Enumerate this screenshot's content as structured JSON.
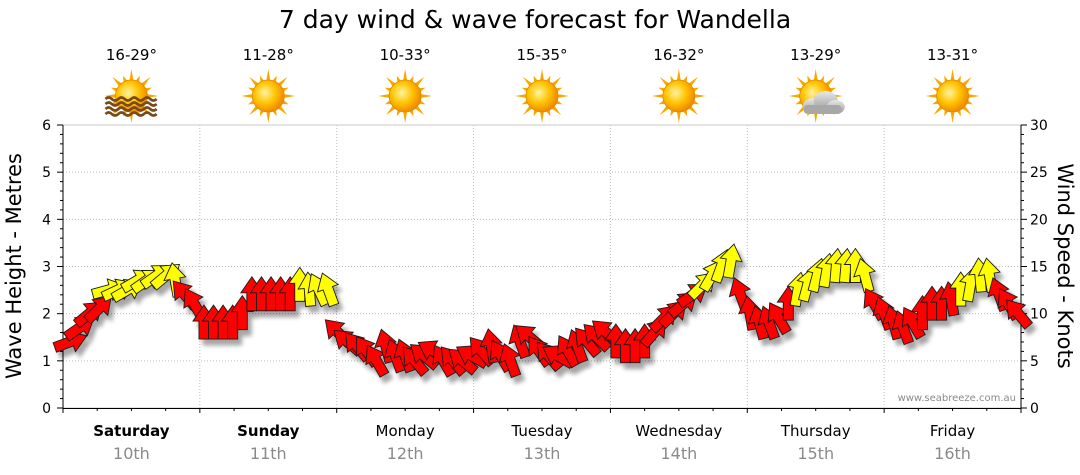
{
  "chart_data": {
    "type": "wind-wave",
    "title": "7 day wind & wave forecast for Wandella",
    "ylabel_left": "Wave Height - Metres",
    "ylabel_right": "Wind Speed - Knots",
    "ylim_left": [
      0,
      6
    ],
    "ylim_right": [
      0,
      30
    ],
    "yticks_left": [
      "0",
      "1",
      "2",
      "3",
      "4",
      "5",
      "6"
    ],
    "yticks_right": [
      "0",
      "5",
      "10",
      "15",
      "20",
      "25",
      "30"
    ],
    "watermark": "www.seabreeze.com.au",
    "days": [
      {
        "day": "Saturday",
        "date": "10th",
        "temp": "16-29°",
        "icon": "sun-haze-icon",
        "bold": true
      },
      {
        "day": "Sunday",
        "date": "11th",
        "temp": "11-28°",
        "icon": "sun-icon",
        "bold": true
      },
      {
        "day": "Monday",
        "date": "12th",
        "temp": "10-33°",
        "icon": "sun-icon",
        "bold": false
      },
      {
        "day": "Tuesday",
        "date": "13th",
        "temp": "15-35°",
        "icon": "sun-icon",
        "bold": false
      },
      {
        "day": "Wednesday",
        "date": "14th",
        "temp": "16-32°",
        "icon": "sun-icon",
        "bold": false
      },
      {
        "day": "Thursday",
        "date": "15th",
        "temp": "13-29°",
        "icon": "sun-cloud-icon",
        "bold": false
      },
      {
        "day": "Friday",
        "date": "16th",
        "temp": "13-31°",
        "icon": "sun-icon",
        "bold": false
      }
    ],
    "wind_colors": {
      "strong": "#ff0000",
      "light": "#ffff00"
    },
    "wind_series": [
      {
        "t": 0.05,
        "knots": 7,
        "dir": 70
      },
      {
        "t": 0.12,
        "knots": 8.5,
        "dir": 55
      },
      {
        "t": 0.19,
        "knots": 10,
        "dir": 50
      },
      {
        "t": 0.26,
        "knots": 10.5,
        "dir": 45
      },
      {
        "t": 0.33,
        "knots": 12.5,
        "dir": 75
      },
      {
        "t": 0.4,
        "knots": 12.5,
        "dir": 65
      },
      {
        "t": 0.47,
        "knots": 12.5,
        "dir": 60
      },
      {
        "t": 0.54,
        "knots": 13.5,
        "dir": 60
      },
      {
        "t": 0.61,
        "knots": 13.5,
        "dir": 55
      },
      {
        "t": 0.68,
        "knots": 14,
        "dir": 55
      },
      {
        "t": 0.75,
        "knots": 14,
        "dir": 50
      },
      {
        "t": 0.82,
        "knots": 13.5,
        "dir": -10
      },
      {
        "t": 0.89,
        "knots": 12,
        "dir": -40
      },
      {
        "t": 0.96,
        "knots": 11,
        "dir": -30
      },
      {
        "t": 1.03,
        "knots": 9,
        "dir": 0
      },
      {
        "t": 1.1,
        "knots": 9,
        "dir": 0
      },
      {
        "t": 1.17,
        "knots": 9,
        "dir": 0
      },
      {
        "t": 1.24,
        "knots": 9,
        "dir": 0
      },
      {
        "t": 1.31,
        "knots": 10,
        "dir": 0
      },
      {
        "t": 1.38,
        "knots": 12,
        "dir": 0
      },
      {
        "t": 1.45,
        "knots": 12,
        "dir": 0
      },
      {
        "t": 1.52,
        "knots": 12,
        "dir": 0
      },
      {
        "t": 1.59,
        "knots": 12,
        "dir": 0
      },
      {
        "t": 1.66,
        "knots": 12,
        "dir": 0
      },
      {
        "t": 1.73,
        "knots": 13,
        "dir": 0
      },
      {
        "t": 1.8,
        "knots": 12.5,
        "dir": -5
      },
      {
        "t": 1.87,
        "knots": 12.5,
        "dir": -25
      },
      {
        "t": 1.94,
        "knots": 12.5,
        "dir": -20
      },
      {
        "t": 2.01,
        "knots": 8,
        "dir": -45
      },
      {
        "t": 2.08,
        "knots": 7,
        "dir": -50
      },
      {
        "t": 2.15,
        "knots": 6.5,
        "dir": -40
      },
      {
        "t": 2.22,
        "knots": 6,
        "dir": -35
      },
      {
        "t": 2.29,
        "knots": 5,
        "dir": -30
      },
      {
        "t": 2.36,
        "knots": 6.5,
        "dir": -15
      },
      {
        "t": 2.43,
        "knots": 5.5,
        "dir": -20
      },
      {
        "t": 2.5,
        "knots": 5.5,
        "dir": -20
      },
      {
        "t": 2.57,
        "knots": 5,
        "dir": -40
      },
      {
        "t": 2.64,
        "knots": 5.5,
        "dir": -50
      },
      {
        "t": 2.71,
        "knots": 6,
        "dir": -60
      },
      {
        "t": 2.78,
        "knots": 5,
        "dir": -30
      },
      {
        "t": 2.85,
        "knots": 5,
        "dir": -40
      },
      {
        "t": 2.92,
        "knots": 5,
        "dir": -50
      },
      {
        "t": 2.99,
        "knots": 5.5,
        "dir": -60
      },
      {
        "t": 3.06,
        "knots": 6,
        "dir": -40
      },
      {
        "t": 3.13,
        "knots": 6.5,
        "dir": -10
      },
      {
        "t": 3.2,
        "knots": 5.5,
        "dir": -30
      },
      {
        "t": 3.27,
        "knots": 5,
        "dir": -20
      },
      {
        "t": 3.34,
        "knots": 7,
        "dir": -20
      },
      {
        "t": 3.41,
        "knots": 7.5,
        "dir": -50
      },
      {
        "t": 3.48,
        "knots": 6,
        "dir": -35
      },
      {
        "t": 3.55,
        "knots": 5.5,
        "dir": -40
      },
      {
        "t": 3.62,
        "knots": 5.5,
        "dir": -60
      },
      {
        "t": 3.69,
        "knots": 6,
        "dir": -30
      },
      {
        "t": 3.76,
        "knots": 6.5,
        "dir": -20
      },
      {
        "t": 3.83,
        "knots": 7,
        "dir": -40
      },
      {
        "t": 3.9,
        "knots": 7.5,
        "dir": -45
      },
      {
        "t": 3.97,
        "knots": 8,
        "dir": -50
      },
      {
        "t": 4.04,
        "knots": 7,
        "dir": 0
      },
      {
        "t": 4.11,
        "knots": 6.5,
        "dir": 0
      },
      {
        "t": 4.18,
        "knots": 6.5,
        "dir": 0
      },
      {
        "t": 4.25,
        "knots": 7,
        "dir": 0
      },
      {
        "t": 4.32,
        "knots": 8,
        "dir": 40
      },
      {
        "t": 4.39,
        "knots": 9.5,
        "dir": 45
      },
      {
        "t": 4.46,
        "knots": 10,
        "dir": 45
      },
      {
        "t": 4.53,
        "knots": 11,
        "dir": 50
      },
      {
        "t": 4.6,
        "knots": 12,
        "dir": 55
      },
      {
        "t": 4.67,
        "knots": 13,
        "dir": 45
      },
      {
        "t": 4.74,
        "knots": 14,
        "dir": 30
      },
      {
        "t": 4.81,
        "knots": 15,
        "dir": 20
      },
      {
        "t": 4.88,
        "knots": 15.5,
        "dir": 10
      },
      {
        "t": 4.95,
        "knots": 12,
        "dir": -20
      },
      {
        "t": 5.02,
        "knots": 10,
        "dir": -10
      },
      {
        "t": 5.09,
        "knots": 9,
        "dir": -15
      },
      {
        "t": 5.16,
        "knots": 9,
        "dir": -20
      },
      {
        "t": 5.23,
        "knots": 9.5,
        "dir": -30
      },
      {
        "t": 5.3,
        "knots": 11,
        "dir": 0
      },
      {
        "t": 5.37,
        "knots": 12.5,
        "dir": 10
      },
      {
        "t": 5.44,
        "knots": 13,
        "dir": 15
      },
      {
        "t": 5.51,
        "knots": 14,
        "dir": 15
      },
      {
        "t": 5.58,
        "knots": 14.5,
        "dir": 10
      },
      {
        "t": 5.65,
        "knots": 15,
        "dir": 5
      },
      {
        "t": 5.72,
        "knots": 15,
        "dir": 5
      },
      {
        "t": 5.79,
        "knots": 15,
        "dir": 0
      },
      {
        "t": 5.86,
        "knots": 14,
        "dir": -15
      },
      {
        "t": 5.93,
        "knots": 11,
        "dir": -30
      },
      {
        "t": 6.0,
        "knots": 10,
        "dir": -20
      },
      {
        "t": 6.07,
        "knots": 9,
        "dir": -15
      },
      {
        "t": 6.14,
        "knots": 8.5,
        "dir": -20
      },
      {
        "t": 6.21,
        "knots": 9,
        "dir": -30
      },
      {
        "t": 6.28,
        "knots": 10,
        "dir": 0
      },
      {
        "t": 6.35,
        "knots": 11,
        "dir": 0
      },
      {
        "t": 6.42,
        "knots": 11,
        "dir": 0
      },
      {
        "t": 6.49,
        "knots": 11.5,
        "dir": -10
      },
      {
        "t": 6.56,
        "knots": 12.5,
        "dir": 0
      },
      {
        "t": 6.63,
        "knots": 13,
        "dir": 10
      },
      {
        "t": 6.7,
        "knots": 14,
        "dir": -5
      },
      {
        "t": 6.77,
        "knots": 14,
        "dir": -10
      },
      {
        "t": 6.84,
        "knots": 12,
        "dir": -20
      },
      {
        "t": 6.91,
        "knots": 11,
        "dir": -30
      },
      {
        "t": 6.98,
        "knots": 10,
        "dir": -40
      }
    ]
  }
}
